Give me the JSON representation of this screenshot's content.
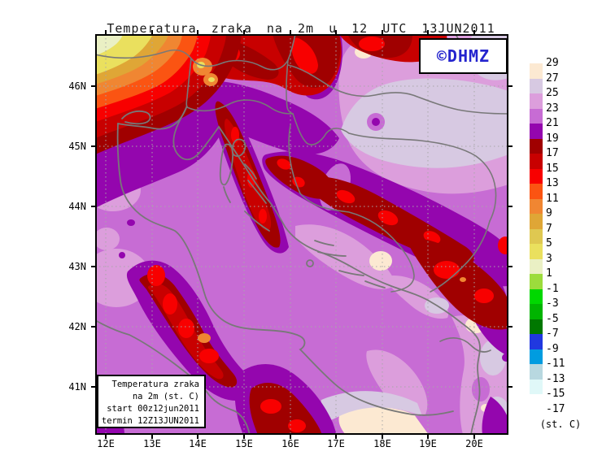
{
  "title": "Temperatura zraka na 2m u 12 UTC 13JUN2011",
  "watermark": {
    "text": "©DHMZ"
  },
  "info_box": {
    "lines": [
      "Temperatura zraka",
      "na 2m (st. C)",
      "start 00z12jun2011",
      "termin 12Z13JUN2011"
    ]
  },
  "axes": {
    "lon_labels": [
      "12E",
      "13E",
      "14E",
      "15E",
      "16E",
      "17E",
      "18E",
      "19E",
      "20E"
    ],
    "lat_labels": [
      "46N",
      "45N",
      "44N",
      "43N",
      "42N",
      "41N"
    ]
  },
  "legend": {
    "unit_label": "(st. C)",
    "boundary_labels": [
      "29",
      "27",
      "25",
      "23",
      "21",
      "19",
      "17",
      "15",
      "13",
      "11",
      "9",
      "7",
      "5",
      "3",
      "1",
      "-1",
      "-3",
      "-5",
      "-7",
      "-9",
      "-11",
      "-13",
      "-15",
      "-17"
    ],
    "box_color_keys": [
      "cream",
      "mauve",
      "orchid_light",
      "orchid",
      "purple",
      "darkred",
      "red",
      "brightred",
      "orangered",
      "orange",
      "gold",
      "dark_yellow",
      "yellow",
      "pale_yellow_green",
      "yellow_green",
      "bright_green",
      "green",
      "dark_green",
      "blue",
      "azure",
      "pale_blue",
      "pale_cyan",
      "white"
    ]
  },
  "palette": {
    "cream": "#FCE9D2",
    "mauve": "#D7C9E2",
    "orchid_light": "#DC9EDC",
    "orchid": "#C76CD4",
    "purple": "#9406AE",
    "darkred": "#A00000",
    "red": "#C80000",
    "brightred": "#F80000",
    "orangered": "#FB5412",
    "orange": "#F08632",
    "gold": "#DFA636",
    "dark_yellow": "#DFC851",
    "yellow": "#EAE05E",
    "pale_yellow_green": "#EAF0C4",
    "yellow_green": "#9CDC3C",
    "bright_green": "#00D800",
    "green": "#00B400",
    "dark_green": "#007800",
    "blue": "#2038E0",
    "azure": "#009CE0",
    "pale_blue": "#B8D8E0",
    "pale_cyan": "#E0F8F8",
    "white": "#FFFFFF",
    "line_gray": "#787878",
    "grid_gray": "#A8A8A8",
    "frame_black": "#000000",
    "dhmz_blue": "#2424CE"
  }
}
